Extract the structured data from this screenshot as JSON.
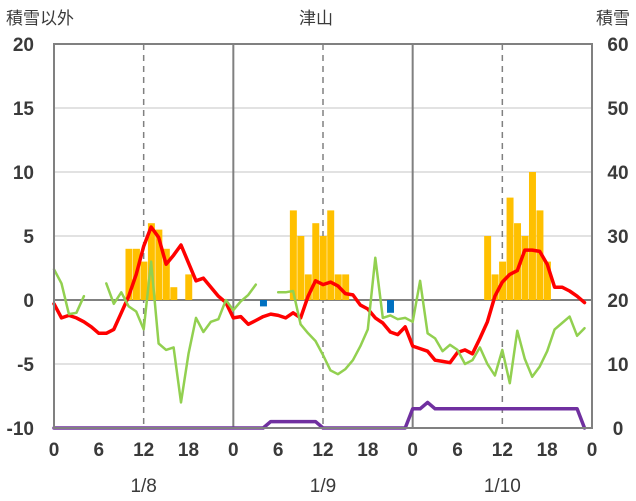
{
  "chart_data": {
    "type": "line",
    "title": "津山",
    "left_axis_title": "積雪以外",
    "right_axis_title": "積雪",
    "ylim_left": [
      -10,
      20
    ],
    "ylim_right": [
      0,
      60
    ],
    "left_ticks": [
      "20",
      "15",
      "10",
      "5",
      "0",
      "-5",
      "-10"
    ],
    "right_ticks": [
      "60",
      "50",
      "40",
      "30",
      "20",
      "10",
      "0"
    ],
    "x_tick_labels": [
      "0",
      "6",
      "12",
      "18",
      "0",
      "6",
      "12",
      "18",
      "0",
      "6",
      "12",
      "18",
      "0"
    ],
    "date_labels": [
      "1/8",
      "1/9",
      "1/10"
    ],
    "x_hours": [
      0,
      1,
      2,
      3,
      4,
      5,
      6,
      7,
      8,
      9,
      10,
      11,
      12,
      13,
      14,
      15,
      16,
      17,
      18,
      19,
      20,
      21,
      22,
      23,
      24,
      25,
      26,
      27,
      28,
      29,
      30,
      31,
      32,
      33,
      34,
      35,
      36,
      37,
      38,
      39,
      40,
      41,
      42,
      43,
      44,
      45,
      46,
      47,
      48,
      49,
      50,
      51,
      52,
      53,
      54,
      55,
      56,
      57,
      58,
      59,
      60,
      61,
      62,
      63,
      64,
      65,
      66,
      67,
      68,
      69,
      70,
      71
    ],
    "series": [
      {
        "name": "precipitation",
        "kind": "bar",
        "color": "#FFC000",
        "values": [
          0,
          0,
          0,
          0,
          0,
          0,
          0,
          0,
          0,
          0,
          4,
          4,
          3,
          6,
          5.5,
          4,
          1,
          0,
          2,
          0,
          0,
          0,
          0,
          0,
          0,
          0,
          0,
          0,
          0,
          0,
          0,
          0,
          7,
          5,
          2,
          6,
          5,
          7,
          2,
          2,
          0,
          0,
          0,
          0,
          0,
          0,
          0,
          0,
          0,
          0,
          0,
          0,
          0,
          0,
          0,
          0,
          0,
          0,
          5,
          2,
          3,
          8,
          6,
          5,
          10,
          7,
          3,
          0,
          0,
          0,
          0,
          0
        ]
      },
      {
        "name": "negative-bar",
        "kind": "bar",
        "color": "#0070C0",
        "values": [
          0,
          0,
          0,
          0,
          0,
          0,
          0,
          0,
          0,
          0,
          0,
          0,
          0,
          0,
          0,
          0,
          0,
          0,
          0,
          0,
          0,
          0,
          0,
          0,
          0,
          0,
          0,
          0,
          -0.5,
          0,
          0,
          0,
          0,
          0,
          0,
          0,
          0,
          0,
          0,
          0,
          0,
          0,
          0,
          0,
          0,
          -1,
          0,
          0,
          0,
          0,
          0,
          0,
          0,
          0,
          0,
          0,
          0,
          0,
          0,
          0,
          0,
          0,
          0,
          0,
          0,
          0,
          0,
          0,
          0,
          0,
          0,
          0
        ]
      },
      {
        "name": "temperature",
        "kind": "line",
        "color": "#FF0000",
        "values": [
          -0.3,
          -1.4,
          -1.2,
          -1.4,
          -1.7,
          -2.1,
          -2.6,
          -2.6,
          -2.3,
          -1.0,
          0.3,
          2.0,
          4.2,
          5.7,
          4.9,
          2.8,
          3.5,
          4.3,
          2.9,
          1.5,
          1.7,
          1.0,
          0.3,
          -0.2,
          -1.4,
          -1.3,
          -1.9,
          -1.6,
          -1.3,
          -1.1,
          -1.2,
          -1.4,
          -1.0,
          -1.4,
          0.3,
          1.5,
          1.2,
          1.4,
          1.1,
          0.5,
          0.4,
          -0.4,
          -0.7,
          -1.4,
          -1.8,
          -2.5,
          -2.7,
          -2.1,
          -3.6,
          -3.8,
          -4.0,
          -4.7,
          -4.8,
          -4.9,
          -4.1,
          -3.9,
          -4.2,
          -3.0,
          -1.7,
          0.3,
          1.4,
          2.0,
          2.3,
          3.9,
          3.9,
          3.8,
          2.8,
          1.0,
          1.0,
          0.7,
          0.3,
          -0.2
        ]
      },
      {
        "name": "humidity-like",
        "kind": "line",
        "color": "#92D050",
        "gaps": true,
        "values": [
          2.4,
          1.3,
          -1.1,
          -1.0,
          0.3,
          null,
          null,
          1.3,
          -0.3,
          0.6,
          -0.5,
          -0.9,
          -2.3,
          3.0,
          -3.4,
          -3.9,
          -3.7,
          -8.0,
          -4.2,
          -1.4,
          -2.5,
          -1.7,
          -1.5,
          0.0,
          -0.8,
          -0.1,
          0.4,
          1.2,
          null,
          null,
          0.6,
          0.6,
          0.7,
          -1.9,
          -2.6,
          -3.2,
          -4.3,
          -5.5,
          -5.8,
          -5.4,
          -4.7,
          -3.6,
          -2.3,
          3.3,
          -1.4,
          -1.2,
          -1.5,
          -1.4,
          -1.7,
          1.5,
          -2.6,
          -3.0,
          -4.0,
          -3.5,
          -3.9,
          -5.0,
          -4.7,
          -3.7,
          -5.0,
          -5.9,
          -3.9,
          -6.5,
          -2.4,
          -4.6,
          -6.0,
          -5.2,
          -4.0,
          -2.3,
          -1.8,
          -1.3,
          -2.8,
          -2.2
        ]
      },
      {
        "name": "snow-depth",
        "kind": "line",
        "axis": "right",
        "color": "#7030A0",
        "values": [
          0,
          0,
          0,
          0,
          0,
          0,
          0,
          0,
          0,
          0,
          0,
          0,
          0,
          0,
          0,
          0,
          0,
          0,
          0,
          0,
          0,
          0,
          0,
          0,
          0,
          0,
          0,
          0,
          0,
          1,
          1,
          1,
          1,
          1,
          1,
          1,
          0,
          0,
          0,
          0,
          0,
          0,
          0,
          0,
          0,
          0,
          0,
          0,
          3,
          3,
          4,
          3,
          3,
          3,
          3,
          3,
          3,
          3,
          3,
          3,
          3,
          3,
          3,
          3,
          3,
          3,
          3,
          3,
          3,
          3,
          3,
          0
        ]
      }
    ]
  }
}
